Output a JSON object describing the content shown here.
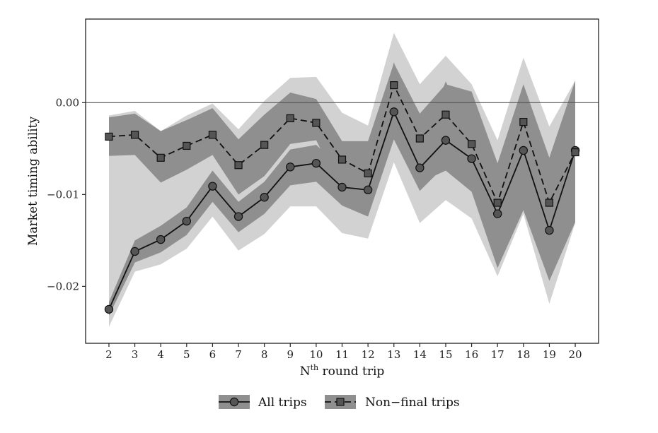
{
  "chart_data": {
    "type": "line",
    "xlabel": {
      "base": "N",
      "sup": "th",
      "rest": " round trip"
    },
    "ylabel": "Market timing ability",
    "x": [
      2,
      3,
      4,
      5,
      6,
      7,
      8,
      9,
      10,
      11,
      12,
      13,
      14,
      15,
      16,
      17,
      18,
      19,
      20
    ],
    "xlim": [
      1.1,
      20.9
    ],
    "ylim": [
      -0.0262,
      0.0091
    ],
    "y_ticks": [
      -0.02,
      -0.01,
      0.0
    ],
    "y_tick_labels": [
      "−0.02",
      "−0.01",
      "0.00"
    ],
    "reference_line_y": 0.0,
    "grid": false,
    "legend_position": "bottom",
    "series": [
      {
        "name": "All trips",
        "marker": "circle",
        "line_style": "solid",
        "values": [
          -0.0225,
          -0.0162,
          -0.0149,
          -0.0129,
          -0.0091,
          -0.0124,
          -0.0103,
          -0.007,
          -0.0066,
          -0.0092,
          -0.0095,
          -0.001,
          -0.0071,
          -0.0041,
          -0.0061,
          -0.0121,
          -0.0052,
          -0.0139,
          -0.0052
        ],
        "ci_inner": {
          "lower": [
            -0.0232,
            -0.0174,
            -0.0163,
            -0.0144,
            -0.0108,
            -0.0141,
            -0.0121,
            -0.009,
            -0.0086,
            -0.0112,
            -0.0124,
            -0.004,
            -0.0096,
            -0.0068,
            -0.0089,
            -0.017,
            -0.0091,
            -0.019,
            -0.0125
          ],
          "upper": [
            -0.0217,
            -0.015,
            -0.0134,
            -0.0114,
            -0.0074,
            -0.0108,
            -0.0086,
            -0.0051,
            -0.0046,
            -0.0071,
            -0.0066,
            0.0044,
            -0.0046,
            0.0023,
            -0.0033,
            -0.0072,
            0.0018,
            -0.0088,
            0.002
          ]
        },
        "ci_outer": {
          "lower": [
            -0.0244,
            -0.0184,
            -0.0176,
            -0.0159,
            -0.0124,
            -0.0161,
            -0.0143,
            -0.0113,
            -0.0113,
            -0.0142,
            -0.0148,
            -0.0065,
            -0.0131,
            -0.0106,
            -0.0126,
            -0.0189,
            -0.0121,
            -0.0219,
            -0.0131
          ]
        }
      },
      {
        "name": "Non−final trips",
        "marker": "square",
        "line_style": "dashed",
        "values": [
          -0.0037,
          -0.0035,
          -0.006,
          -0.0047,
          -0.0035,
          -0.0068,
          -0.0046,
          -0.0017,
          -0.0022,
          -0.0062,
          -0.0077,
          0.0019,
          -0.0039,
          -0.0013,
          -0.0045,
          -0.0109,
          -0.0021,
          -0.0109,
          -0.0054
        ],
        "ci_inner": {
          "lower": [
            -0.0058,
            -0.0057,
            -0.0087,
            -0.0073,
            -0.0057,
            -0.01,
            -0.008,
            -0.0045,
            -0.0041,
            -0.0097,
            -0.0109,
            -0.0034,
            -0.0087,
            -0.0074,
            -0.0097,
            -0.018,
            -0.0117,
            -0.0194,
            -0.013
          ],
          "upper": [
            -0.0016,
            -0.0012,
            -0.0031,
            -0.0019,
            -0.0006,
            -0.004,
            -0.0013,
            0.0011,
            0.0004,
            -0.0042,
            -0.0042,
            0.0043,
            -0.0012,
            0.002,
            0.0012,
            -0.0066,
            0.002,
            -0.006,
            0.0024
          ]
        },
        "ci_outer": {
          "upper": [
            -0.0014,
            -0.0009,
            -0.0031,
            -0.0014,
            -0.0001,
            -0.0029,
            0.0002,
            0.0027,
            0.0028,
            -0.0011,
            -0.0025,
            0.0076,
            0.002,
            0.0051,
            0.002,
            -0.0041,
            0.0049,
            -0.0026,
            0.0024
          ]
        }
      }
    ]
  },
  "colors": {
    "band_outer": "#d2d2d2",
    "band_inner": "#8f8f8f",
    "line": "#111111",
    "marker_fill": "#555555",
    "reference_line": "#555555",
    "frame": "#222222"
  }
}
